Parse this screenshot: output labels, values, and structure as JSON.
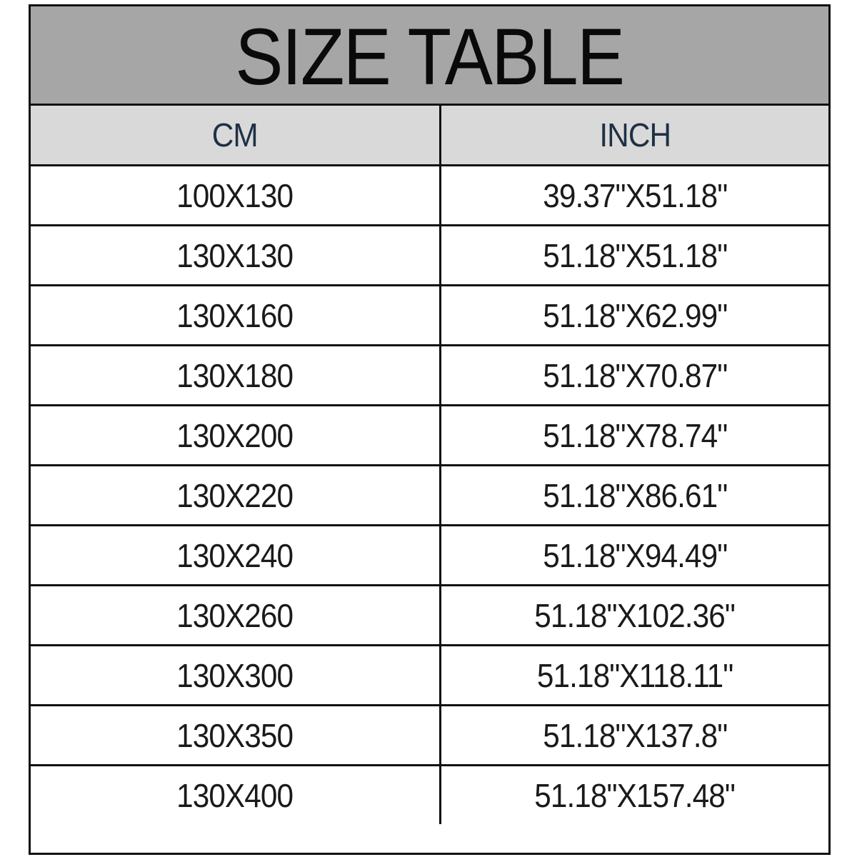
{
  "title": "SIZE TABLE",
  "columns": [
    "CM",
    "INCH"
  ],
  "rows": [
    [
      "100X130",
      "39.37\"X51.18\""
    ],
    [
      "130X130",
      "51.18\"X51.18\""
    ],
    [
      "130X160",
      "51.18\"X62.99\""
    ],
    [
      "130X180",
      "51.18\"X70.87\""
    ],
    [
      "130X200",
      "51.18\"X78.74\""
    ],
    [
      "130X220",
      "51.18\"X86.61\""
    ],
    [
      "130X240",
      "51.18\"X94.49\""
    ],
    [
      "130X260",
      "51.18\"X102.36\""
    ],
    [
      "130X300",
      "51.18\"X118.11\""
    ],
    [
      "130X350",
      "51.18\"X137.8\""
    ],
    [
      "130X400",
      "51.18\"X157.48\""
    ]
  ],
  "colors": {
    "title_bg": "#a6a6a6",
    "header_bg": "#d9d9d9",
    "border": "#111111"
  }
}
